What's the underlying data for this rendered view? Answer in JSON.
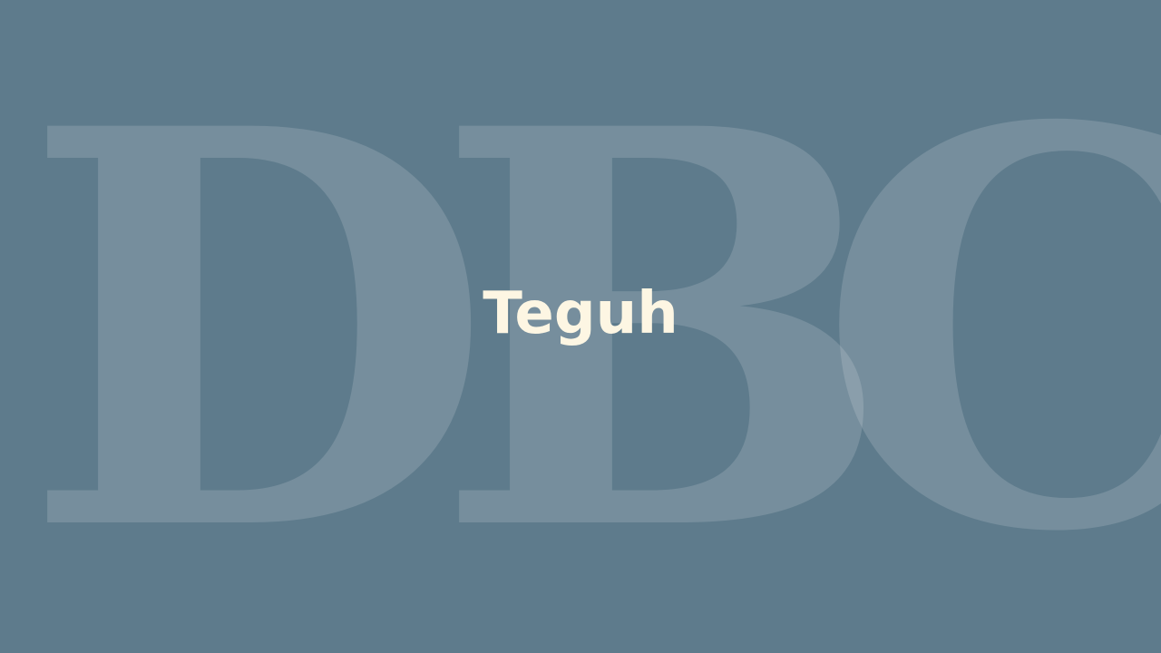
{
  "background_color": "#5e7b8c",
  "watermark": {
    "letters": [
      "D",
      "B",
      "C"
    ],
    "color": "rgba(255,255,255,0.15)"
  },
  "title": {
    "text": "Teguh",
    "color": "#fdf6e3"
  }
}
